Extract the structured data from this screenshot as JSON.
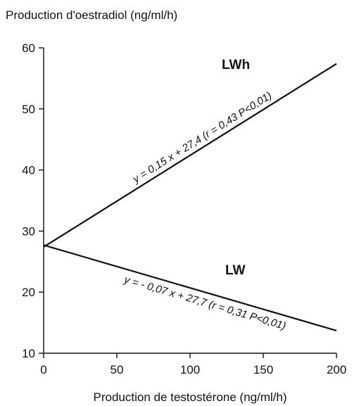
{
  "chart_data": {
    "type": "line",
    "title": "",
    "ylabel": "Production d'oestradiol (ng/ml/h)",
    "xlabel": "Production de testostérone (ng/ml/h)",
    "xlim": [
      0,
      200
    ],
    "ylim": [
      10,
      60
    ],
    "xticks": [
      0,
      50,
      100,
      150,
      200
    ],
    "yticks": [
      10,
      20,
      30,
      40,
      50,
      60
    ],
    "grid": false,
    "series": [
      {
        "name": "LWh",
        "equation": "y = 0,15 x + 27,4  (r = 0,43   P<0,01)",
        "x": [
          0,
          200
        ],
        "y": [
          27.4,
          57.4
        ],
        "color": "#111111"
      },
      {
        "name": "LW",
        "equation": "y = - 0,07 x + 27,7   (r = 0,31   P<0,01)",
        "x": [
          0,
          200
        ],
        "y": [
          27.7,
          13.7
        ],
        "color": "#111111"
      }
    ]
  }
}
